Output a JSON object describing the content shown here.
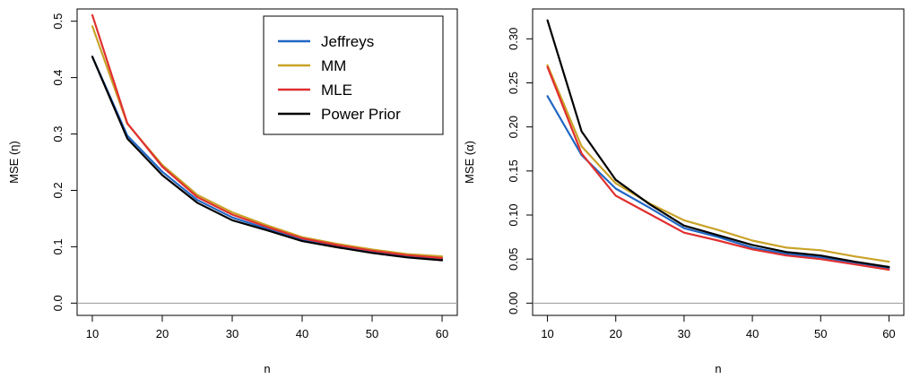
{
  "chart_data": [
    {
      "type": "line",
      "xlabel": "n",
      "ylabel": "MSE (η)",
      "x": [
        10,
        15,
        20,
        25,
        30,
        35,
        40,
        45,
        50,
        55,
        60
      ],
      "xticks": [
        "10",
        "20",
        "30",
        "40",
        "50",
        "60"
      ],
      "xlim": [
        10,
        60
      ],
      "yticks": [
        "0.0",
        "0.1",
        "0.2",
        "0.3",
        "0.4",
        "0.5"
      ],
      "ylim": [
        0,
        0.5
      ],
      "zero_line": true,
      "legend": {
        "placement": "top-right"
      },
      "series": [
        {
          "name": "Jeffreys",
          "color": "#2166c4",
          "values": [
            0.437,
            0.297,
            0.233,
            0.183,
            0.152,
            0.132,
            0.113,
            0.101,
            0.091,
            0.083,
            0.078
          ]
        },
        {
          "name": "MM",
          "color": "#c9a227",
          "values": [
            0.491,
            0.318,
            0.245,
            0.192,
            0.161,
            0.138,
            0.117,
            0.105,
            0.095,
            0.087,
            0.083
          ]
        },
        {
          "name": "MLE",
          "color": "#e03030",
          "values": [
            0.511,
            0.319,
            0.242,
            0.188,
            0.157,
            0.135,
            0.115,
            0.103,
            0.093,
            0.085,
            0.08
          ]
        },
        {
          "name": "Power Prior",
          "color": "#000000",
          "values": [
            0.437,
            0.292,
            0.227,
            0.178,
            0.147,
            0.129,
            0.11,
            0.099,
            0.089,
            0.081,
            0.076
          ]
        }
      ]
    },
    {
      "type": "line",
      "xlabel": "n",
      "ylabel": "MSE (α)",
      "x": [
        10,
        15,
        20,
        25,
        30,
        35,
        40,
        45,
        50,
        55,
        60
      ],
      "xticks": [
        "10",
        "20",
        "30",
        "40",
        "50",
        "60"
      ],
      "xlim": [
        10,
        60
      ],
      "yticks": [
        "0.00",
        "0.05",
        "0.10",
        "0.15",
        "0.20",
        "0.25",
        "0.30"
      ],
      "ylim": [
        0,
        0.32
      ],
      "zero_line": true,
      "series": [
        {
          "name": "Jeffreys",
          "color": "#2166c4",
          "values": [
            0.235,
            0.168,
            0.13,
            0.108,
            0.085,
            0.075,
            0.063,
            0.056,
            0.052,
            0.046,
            0.04
          ]
        },
        {
          "name": "MM",
          "color": "#c9a227",
          "values": [
            0.27,
            0.178,
            0.136,
            0.113,
            0.094,
            0.083,
            0.071,
            0.063,
            0.06,
            0.053,
            0.047
          ]
        },
        {
          "name": "MLE",
          "color": "#e03030",
          "values": [
            0.268,
            0.17,
            0.122,
            0.101,
            0.08,
            0.071,
            0.061,
            0.054,
            0.05,
            0.044,
            0.038
          ]
        },
        {
          "name": "Power Prior",
          "color": "#000000",
          "values": [
            0.321,
            0.195,
            0.14,
            0.112,
            0.088,
            0.077,
            0.066,
            0.058,
            0.054,
            0.047,
            0.041
          ]
        }
      ]
    }
  ]
}
